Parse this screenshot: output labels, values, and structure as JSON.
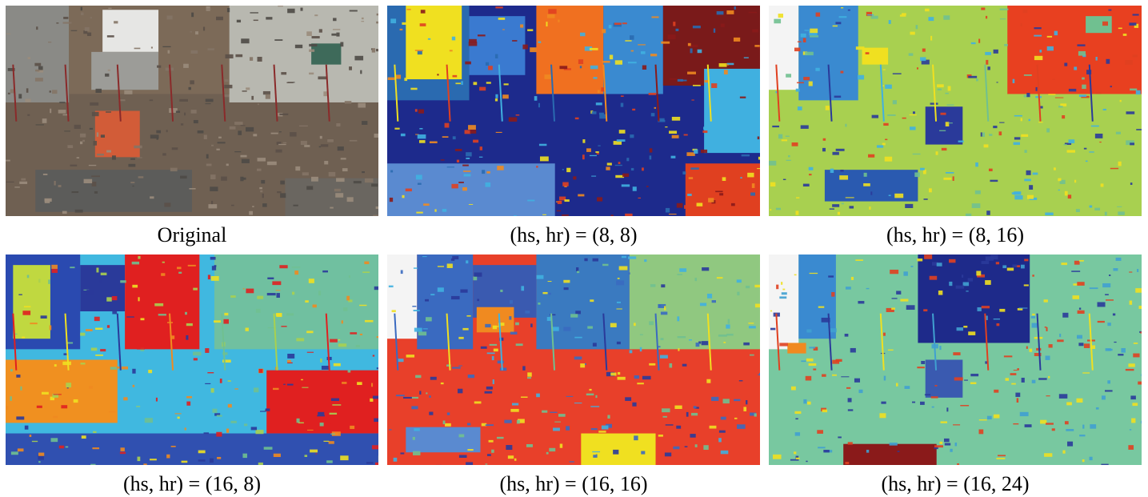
{
  "panels": [
    {
      "caption": "Original"
    },
    {
      "caption": "(hs, hr) = (8, 8)"
    },
    {
      "caption": "(hs, hr) = (8, 16)"
    },
    {
      "caption": "(hs, hr) = (16, 8)"
    },
    {
      "caption": "(hs, hr) = (16, 16)"
    },
    {
      "caption": "(hs, hr) = (16, 24)"
    }
  ]
}
